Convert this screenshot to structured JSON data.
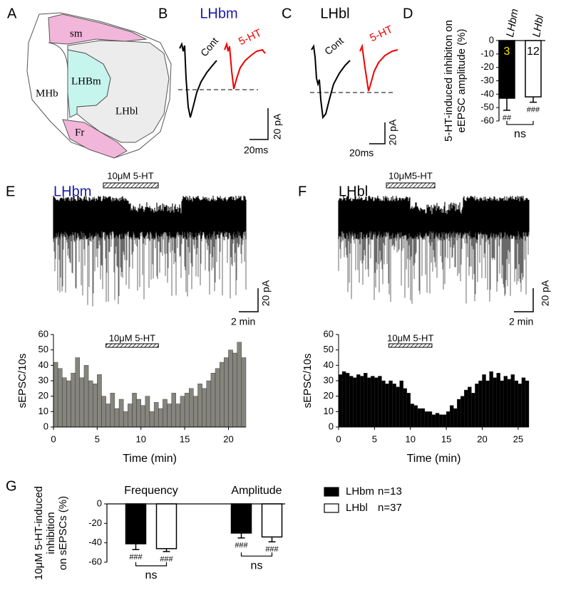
{
  "panel_labels": [
    "A",
    "B",
    "C",
    "D",
    "E",
    "F",
    "G"
  ],
  "diagram": {
    "regions": [
      "sm",
      "MHb",
      "LHBm",
      "LHbl",
      "Fr"
    ]
  },
  "traces": [
    {
      "title": "LHbm",
      "control_label": "Cont",
      "drug_label": "5-HT",
      "scale_y": "20 pA",
      "scale_x": "20ms"
    },
    {
      "title": "LHbl",
      "control_label": "Cont",
      "drug_label": "5-HT",
      "scale_y": "20 pA",
      "scale_x": "20ms"
    },
    {
      "title": "LHbm",
      "drug": "10μM 5-HT",
      "scale_y": "20 pA",
      "scale_x": "2 min"
    },
    {
      "title": "LHbl",
      "drug": "10μM5-HT",
      "scale_y": "20 pA",
      "scale_x": "2 min"
    }
  ],
  "chart_data": [
    {
      "type": "bar",
      "y_label": [
        "5-HT-induced inhibiton on",
        "eEPSC amplitude (%)"
      ],
      "categories": [
        "LHbm",
        "LHbl"
      ],
      "values": [
        -43,
        -42
      ],
      "errors": [
        9,
        4
      ],
      "colors": [
        "#000000",
        "#ffffff"
      ],
      "n_labels": [
        "3",
        "12"
      ],
      "significance": [
        "##",
        "###"
      ],
      "comparison": "ns",
      "ylim": [
        -60,
        0
      ],
      "yticks": [
        0,
        -10,
        -20,
        -30,
        -40,
        -50,
        -60
      ]
    },
    {
      "type": "histogram",
      "y_label": [
        "sEPSC/10s"
      ],
      "x_label": "Time (min)",
      "color": "#85857d",
      "annotation": {
        "text": "10μM 5-HT",
        "span": [
          6,
          12
        ]
      },
      "bins": [
        0,
        0.5,
        1,
        1.5,
        2,
        2.5,
        3,
        3.5,
        4,
        4.5,
        5,
        5.5,
        6,
        6.5,
        7,
        7.5,
        8,
        8.5,
        9,
        9.5,
        10,
        10.5,
        11,
        11.5,
        12,
        12.5,
        13,
        13.5,
        14,
        14.5,
        15,
        15.5,
        16,
        16.5,
        17,
        17.5,
        18,
        18.5,
        19,
        19.5,
        20,
        20.5,
        21,
        21.5,
        22
      ],
      "values": [
        42,
        38,
        32,
        30,
        35,
        45,
        32,
        40,
        30,
        28,
        34,
        20,
        15,
        22,
        12,
        18,
        10,
        15,
        22,
        18,
        14,
        20,
        10,
        16,
        12,
        18,
        15,
        22,
        15,
        20,
        22,
        25,
        20,
        28,
        25,
        30,
        35,
        38,
        42,
        45,
        50,
        48,
        55,
        45
      ],
      "xlim": [
        0,
        22
      ],
      "xticks": [
        0,
        5,
        10,
        15,
        20
      ],
      "ylim": [
        0,
        60
      ],
      "yticks": [
        0,
        10,
        20,
        30,
        40,
        50,
        60
      ]
    },
    {
      "type": "histogram",
      "y_label": [
        "sEPSC/10s"
      ],
      "x_label": "Time (min)",
      "color": "#000000",
      "annotation": {
        "text": "10μM 5-HT",
        "span": [
          7,
          13
        ]
      },
      "bins": [
        0,
        0.5,
        1,
        1.5,
        2,
        2.5,
        3,
        3.5,
        4,
        4.5,
        5,
        5.5,
        6,
        6.5,
        7,
        7.5,
        8,
        8.5,
        9,
        9.5,
        10,
        10.5,
        11,
        11.5,
        12,
        12.5,
        13,
        13.5,
        14,
        14.5,
        15,
        15.5,
        16,
        16.5,
        17,
        17.5,
        18,
        18.5,
        19,
        19.5,
        20,
        20.5,
        21,
        21.5,
        22,
        22.5,
        23,
        23.5,
        24,
        24.5,
        25,
        25.5,
        26,
        26.5
      ],
      "values": [
        34,
        36,
        35,
        33,
        32,
        34,
        33,
        35,
        32,
        33,
        32,
        33,
        30,
        28,
        30,
        28,
        26,
        30,
        25,
        22,
        15,
        14,
        12,
        12,
        10,
        10,
        8,
        9,
        8,
        8,
        10,
        14,
        12,
        18,
        20,
        24,
        26,
        22,
        28,
        30,
        34,
        30,
        36,
        32,
        35,
        30,
        33,
        31,
        34,
        30,
        28,
        32,
        30
      ],
      "xlim": [
        0,
        26.5
      ],
      "xticks": [
        0,
        5,
        10,
        15,
        20,
        25
      ],
      "ylim": [
        0,
        60
      ],
      "yticks": [
        0,
        10,
        20,
        30,
        40,
        50,
        60
      ]
    },
    {
      "type": "bar",
      "y_label": [
        "10μM 5-HT-induced",
        "inhibition",
        "on sEPSCs (%)"
      ],
      "categories": [
        "Frequency",
        "Amplitude"
      ],
      "series": [
        {
          "name": "LHbm",
          "legend_note": "n=13",
          "color": "#000000",
          "values": [
            -41,
            -30
          ],
          "errors": [
            6,
            5
          ],
          "significance": [
            "###",
            "###"
          ]
        },
        {
          "name": "LHbl",
          "legend_note": "n=37",
          "color": "#ffffff",
          "values": [
            -46,
            -34
          ],
          "errors": [
            3,
            5
          ],
          "significance": [
            "###",
            "###"
          ]
        }
      ],
      "comparisons": [
        "ns",
        "ns"
      ],
      "ylim": [
        -60,
        0
      ],
      "yticks": [
        0,
        -20,
        -40,
        -60
      ]
    }
  ]
}
